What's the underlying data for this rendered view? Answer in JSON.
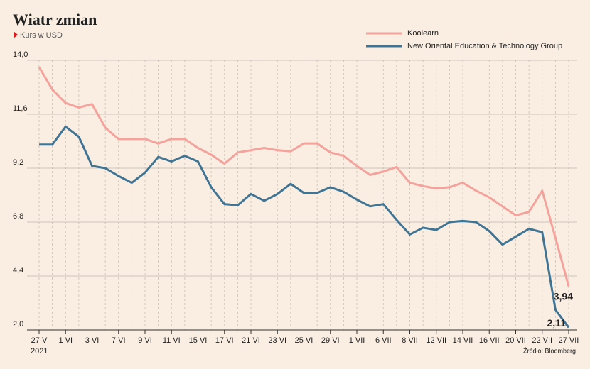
{
  "chart_data": {
    "type": "line",
    "title": "Wiatr zmian",
    "subtitle": "Kurs w USD",
    "xlabel": "2021",
    "source": "Źródło: Bloomberg",
    "categories": [
      "27 V",
      null,
      "1 VI",
      null,
      "3 VI",
      null,
      "7 VI",
      null,
      "9 VI",
      null,
      "11 VI",
      null,
      "15 VI",
      null,
      "17 VI",
      null,
      "21 VI",
      null,
      "23 VI",
      null,
      "25 VI",
      null,
      "29 VI",
      null,
      "1 VII",
      null,
      "6 VII",
      null,
      "8 VII",
      null,
      "12 VII",
      null,
      "14 VII",
      null,
      "16 VII",
      null,
      "20 VII",
      null,
      "22 VII",
      null,
      "27 VII"
    ],
    "series": [
      {
        "name": "Koolearn",
        "color": "#f4a29b",
        "values": [
          13.7,
          12.7,
          12.1,
          11.9,
          12.05,
          11.0,
          10.5,
          10.5,
          10.5,
          10.3,
          10.5,
          10.5,
          10.1,
          9.8,
          9.4,
          9.9,
          10.0,
          10.1,
          10.0,
          9.95,
          10.3,
          10.3,
          9.9,
          9.75,
          9.3,
          8.9,
          9.05,
          9.25,
          8.55,
          8.4,
          8.3,
          8.35,
          8.55,
          8.2,
          7.9,
          7.5,
          7.1,
          7.25,
          8.2,
          6.1,
          3.94
        ],
        "value_labels": [
          null,
          null,
          null,
          null,
          null,
          null,
          null,
          null,
          null,
          null,
          null,
          null,
          null,
          null,
          null,
          null,
          null,
          null,
          null,
          null,
          null,
          null,
          null,
          null,
          null,
          null,
          null,
          null,
          null,
          null,
          null,
          null,
          null,
          null,
          null,
          null,
          null,
          null,
          null,
          null,
          "3,94"
        ]
      },
      {
        "name": "New Oriental Education & Technology Group",
        "color": "#3f7494",
        "values": [
          10.25,
          10.25,
          11.05,
          10.6,
          9.3,
          9.2,
          8.85,
          8.55,
          9.0,
          9.7,
          9.5,
          9.75,
          9.5,
          8.35,
          7.6,
          7.55,
          8.05,
          7.75,
          8.05,
          8.5,
          8.1,
          8.1,
          8.35,
          8.15,
          7.8,
          7.5,
          7.6,
          6.9,
          6.25,
          6.55,
          6.45,
          6.8,
          6.85,
          6.8,
          6.4,
          5.8,
          6.15,
          6.5,
          6.35,
          2.9,
          2.11
        ],
        "value_labels": [
          null,
          null,
          null,
          null,
          null,
          null,
          null,
          null,
          null,
          null,
          null,
          null,
          null,
          null,
          null,
          null,
          null,
          null,
          null,
          null,
          null,
          null,
          null,
          null,
          null,
          null,
          null,
          null,
          null,
          null,
          null,
          null,
          null,
          null,
          null,
          null,
          null,
          null,
          null,
          null,
          "2,11"
        ]
      }
    ],
    "ylim": [
      2.0,
      14.0
    ],
    "yticks": [
      {
        "value": 2.0,
        "label": "2,0"
      },
      {
        "value": 4.4,
        "label": "4,4"
      },
      {
        "value": 6.8,
        "label": "6,8"
      },
      {
        "value": 9.2,
        "label": "9,2"
      },
      {
        "value": 11.6,
        "label": "11,6"
      },
      {
        "value": 14.0,
        "label": "14,0"
      }
    ],
    "grid": true,
    "legend": "top-right"
  }
}
